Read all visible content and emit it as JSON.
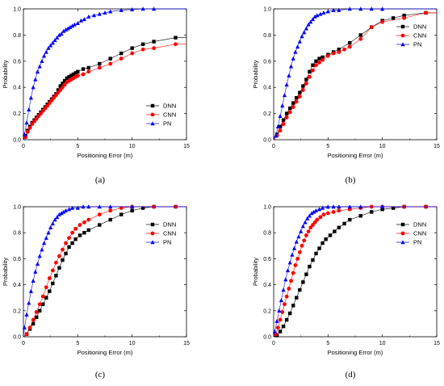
{
  "colors": {
    "DNN": "#000000",
    "CNN": "#ff0000",
    "PN": "#0000ff"
  },
  "chart_data": [
    {
      "type": "line",
      "caption": "(a)",
      "xlabel": "Positioning Error (m)",
      "ylabel": "Probability",
      "xlim": [
        0,
        15
      ],
      "ylim": [
        0,
        1.0
      ],
      "xticks": [
        "0",
        "5",
        "10",
        "15"
      ],
      "yticks": [
        "0.0",
        "0.2",
        "0.4",
        "0.6",
        "0.8",
        "1.0"
      ],
      "legend_position": "bottom-right",
      "series": [
        {
          "name": "DNN",
          "marker": "square",
          "x": [
            0.2,
            0.4,
            0.6,
            0.8,
            1.0,
            1.2,
            1.4,
            1.6,
            1.8,
            2.0,
            2.2,
            2.4,
            2.6,
            2.8,
            3.0,
            3.2,
            3.4,
            3.6,
            3.8,
            4.0,
            4.2,
            4.4,
            4.6,
            4.8,
            5.0,
            5.5,
            6.0,
            7.0,
            8.0,
            9.0,
            10.0,
            11.0,
            12.0,
            14.0
          ],
          "y": [
            0.03,
            0.07,
            0.1,
            0.13,
            0.15,
            0.17,
            0.19,
            0.21,
            0.23,
            0.25,
            0.27,
            0.29,
            0.31,
            0.33,
            0.35,
            0.38,
            0.41,
            0.43,
            0.45,
            0.47,
            0.48,
            0.49,
            0.5,
            0.51,
            0.52,
            0.54,
            0.55,
            0.58,
            0.62,
            0.66,
            0.7,
            0.73,
            0.75,
            0.78
          ]
        },
        {
          "name": "CNN",
          "marker": "circle",
          "x": [
            0.2,
            0.4,
            0.6,
            0.8,
            1.0,
            1.2,
            1.4,
            1.6,
            1.8,
            2.0,
            2.2,
            2.4,
            2.6,
            2.8,
            3.0,
            3.2,
            3.4,
            3.6,
            3.8,
            4.0,
            4.2,
            4.4,
            4.6,
            4.8,
            5.0,
            5.5,
            6.0,
            7.0,
            8.0,
            9.0,
            10.0,
            11.0,
            12.0,
            14.0
          ],
          "y": [
            0.02,
            0.06,
            0.09,
            0.12,
            0.14,
            0.16,
            0.18,
            0.2,
            0.22,
            0.24,
            0.26,
            0.28,
            0.3,
            0.32,
            0.34,
            0.36,
            0.38,
            0.4,
            0.42,
            0.44,
            0.45,
            0.46,
            0.47,
            0.48,
            0.49,
            0.5,
            0.52,
            0.55,
            0.58,
            0.62,
            0.66,
            0.69,
            0.7,
            0.73
          ]
        },
        {
          "name": "PN",
          "marker": "triangle",
          "x": [
            0.1,
            0.3,
            0.5,
            0.7,
            0.9,
            1.1,
            1.3,
            1.5,
            1.7,
            1.9,
            2.1,
            2.3,
            2.5,
            2.7,
            2.9,
            3.1,
            3.3,
            3.5,
            3.7,
            3.9,
            4.1,
            4.3,
            4.5,
            4.7,
            5.0,
            5.3,
            5.6,
            6.0,
            6.5,
            7.0,
            7.5,
            8.0,
            9.0,
            10.0,
            11.0,
            12.0
          ],
          "y": [
            0.04,
            0.13,
            0.23,
            0.32,
            0.4,
            0.46,
            0.52,
            0.56,
            0.6,
            0.64,
            0.67,
            0.7,
            0.72,
            0.74,
            0.76,
            0.78,
            0.8,
            0.81,
            0.83,
            0.84,
            0.85,
            0.86,
            0.87,
            0.88,
            0.89,
            0.91,
            0.92,
            0.94,
            0.95,
            0.96,
            0.97,
            0.98,
            0.99,
            0.995,
            1.0,
            1.0
          ]
        }
      ]
    },
    {
      "type": "line",
      "caption": "(b)",
      "xlabel": "Positioning Error (m)",
      "ylabel": "Probability",
      "xlim": [
        0,
        15
      ],
      "ylim": [
        0,
        1.0
      ],
      "xticks": [
        "0",
        "5",
        "10",
        "15"
      ],
      "yticks": [
        "0.0",
        "0.2",
        "0.4",
        "0.6",
        "0.8",
        "1.0"
      ],
      "legend_position": "top-right",
      "series": [
        {
          "name": "DNN",
          "marker": "square",
          "x": [
            0.3,
            0.6,
            0.9,
            1.2,
            1.5,
            1.8,
            2.1,
            2.4,
            2.7,
            3.0,
            3.3,
            3.6,
            3.9,
            4.2,
            4.5,
            5.0,
            5.5,
            6.0,
            7.0,
            8.0,
            9.0,
            10.0,
            11.0,
            12.0,
            14.0
          ],
          "y": [
            0.04,
            0.1,
            0.15,
            0.2,
            0.24,
            0.28,
            0.32,
            0.36,
            0.41,
            0.46,
            0.52,
            0.57,
            0.6,
            0.62,
            0.63,
            0.65,
            0.67,
            0.69,
            0.74,
            0.8,
            0.86,
            0.91,
            0.93,
            0.95,
            0.97
          ]
        },
        {
          "name": "CNN",
          "marker": "circle",
          "x": [
            0.3,
            0.6,
            0.9,
            1.2,
            1.5,
            1.8,
            2.1,
            2.4,
            2.7,
            3.0,
            3.3,
            3.6,
            3.9,
            4.2,
            4.5,
            5.0,
            5.5,
            6.0,
            6.5,
            7.0,
            8.0,
            9.0,
            10.0,
            12.0,
            14.0
          ],
          "y": [
            0.03,
            0.07,
            0.12,
            0.17,
            0.21,
            0.25,
            0.29,
            0.33,
            0.38,
            0.43,
            0.48,
            0.53,
            0.57,
            0.59,
            0.61,
            0.64,
            0.66,
            0.67,
            0.69,
            0.71,
            0.77,
            0.86,
            0.9,
            0.93,
            0.97
          ]
        },
        {
          "name": "PN",
          "marker": "triangle",
          "x": [
            0.2,
            0.4,
            0.6,
            0.8,
            1.0,
            1.2,
            1.4,
            1.6,
            1.8,
            2.0,
            2.2,
            2.4,
            2.6,
            2.8,
            3.0,
            3.2,
            3.4,
            3.6,
            3.8,
            4.0,
            4.3,
            4.6,
            5.0,
            5.5,
            6.0,
            7.0,
            8.0,
            9.0,
            10.0
          ],
          "y": [
            0.03,
            0.1,
            0.18,
            0.26,
            0.34,
            0.42,
            0.49,
            0.56,
            0.62,
            0.67,
            0.71,
            0.75,
            0.79,
            0.82,
            0.85,
            0.88,
            0.9,
            0.92,
            0.94,
            0.95,
            0.96,
            0.97,
            0.98,
            0.99,
            0.99,
            1.0,
            1.0,
            1.0,
            1.0
          ]
        }
      ]
    },
    {
      "type": "line",
      "caption": "(c)",
      "xlabel": "Positioning Error (m)",
      "ylabel": "Probability",
      "xlim": [
        0,
        15
      ],
      "ylim": [
        0,
        1.0
      ],
      "xticks": [
        "0",
        "5",
        "10",
        "15"
      ],
      "yticks": [
        "0.0",
        "0.2",
        "0.4",
        "0.6",
        "0.8",
        "1.0"
      ],
      "legend_position": "top-right",
      "series": [
        {
          "name": "DNN",
          "marker": "square",
          "x": [
            0.3,
            0.6,
            0.9,
            1.2,
            1.5,
            1.8,
            2.1,
            2.4,
            2.7,
            3.0,
            3.3,
            3.6,
            3.9,
            4.2,
            4.5,
            4.8,
            5.2,
            5.6,
            6.0,
            7.0,
            8.0,
            9.0,
            10.0,
            11.0,
            12.0,
            14.0
          ],
          "y": [
            0.02,
            0.06,
            0.1,
            0.15,
            0.2,
            0.25,
            0.3,
            0.35,
            0.41,
            0.47,
            0.53,
            0.59,
            0.64,
            0.69,
            0.72,
            0.75,
            0.78,
            0.8,
            0.82,
            0.86,
            0.9,
            0.94,
            0.97,
            0.99,
            1.0,
            1.0
          ]
        },
        {
          "name": "CNN",
          "marker": "circle",
          "x": [
            0.3,
            0.6,
            0.9,
            1.2,
            1.5,
            1.8,
            2.1,
            2.4,
            2.7,
            3.0,
            3.3,
            3.6,
            3.9,
            4.2,
            4.5,
            4.8,
            5.2,
            5.6,
            6.0,
            7.0,
            8.0,
            9.0,
            10.0,
            12.0,
            14.0
          ],
          "y": [
            0.02,
            0.07,
            0.13,
            0.19,
            0.25,
            0.31,
            0.38,
            0.45,
            0.51,
            0.57,
            0.62,
            0.67,
            0.72,
            0.76,
            0.8,
            0.83,
            0.86,
            0.88,
            0.9,
            0.94,
            0.97,
            0.99,
            1.0,
            1.0,
            1.0
          ]
        },
        {
          "name": "PN",
          "marker": "triangle",
          "x": [
            0.1,
            0.3,
            0.5,
            0.7,
            0.9,
            1.1,
            1.3,
            1.5,
            1.7,
            1.9,
            2.1,
            2.3,
            2.5,
            2.7,
            2.9,
            3.1,
            3.3,
            3.5,
            3.7,
            3.9,
            4.2,
            4.5,
            5.0,
            5.5,
            6.0,
            7.0,
            8.0,
            10.0
          ],
          "y": [
            0.07,
            0.17,
            0.26,
            0.35,
            0.43,
            0.5,
            0.56,
            0.62,
            0.67,
            0.72,
            0.76,
            0.8,
            0.84,
            0.87,
            0.9,
            0.92,
            0.94,
            0.95,
            0.96,
            0.97,
            0.98,
            0.99,
            0.99,
            1.0,
            1.0,
            1.0,
            1.0,
            1.0
          ]
        }
      ]
    },
    {
      "type": "line",
      "caption": "(d)",
      "xlabel": "Positioning Error (m)",
      "ylabel": "Probability",
      "xlim": [
        0,
        15
      ],
      "ylim": [
        0,
        1.0
      ],
      "xticks": [
        "0",
        "5",
        "10",
        "15"
      ],
      "yticks": [
        "0.0",
        "0.2",
        "0.4",
        "0.6",
        "0.8",
        "1.0"
      ],
      "legend_position": "top-right",
      "series": [
        {
          "name": "DNN",
          "marker": "square",
          "x": [
            0.3,
            0.6,
            0.9,
            1.2,
            1.5,
            1.8,
            2.1,
            2.4,
            2.7,
            3.0,
            3.3,
            3.6,
            3.9,
            4.2,
            4.5,
            4.8,
            5.2,
            5.6,
            6.0,
            6.5,
            7.0,
            8.0,
            9.0,
            10.0,
            11.0,
            12.0,
            14.0
          ],
          "y": [
            0.01,
            0.04,
            0.08,
            0.13,
            0.18,
            0.24,
            0.3,
            0.36,
            0.42,
            0.48,
            0.54,
            0.59,
            0.64,
            0.68,
            0.72,
            0.75,
            0.78,
            0.81,
            0.84,
            0.87,
            0.9,
            0.93,
            0.96,
            0.98,
            0.99,
            1.0,
            1.0
          ]
        },
        {
          "name": "CNN",
          "marker": "circle",
          "x": [
            0.2,
            0.4,
            0.6,
            0.8,
            1.0,
            1.2,
            1.4,
            1.6,
            1.8,
            2.0,
            2.2,
            2.4,
            2.6,
            2.8,
            3.0,
            3.2,
            3.4,
            3.6,
            3.8,
            4.0,
            4.3,
            4.6,
            5.0,
            5.5,
            6.0,
            7.0,
            8.0,
            9.0,
            10.0,
            12.0,
            14.0
          ],
          "y": [
            0.02,
            0.07,
            0.13,
            0.19,
            0.25,
            0.31,
            0.37,
            0.43,
            0.49,
            0.55,
            0.6,
            0.65,
            0.7,
            0.74,
            0.78,
            0.81,
            0.84,
            0.86,
            0.88,
            0.9,
            0.92,
            0.94,
            0.95,
            0.96,
            0.97,
            0.98,
            0.99,
            1.0,
            1.0,
            1.0,
            1.0
          ]
        },
        {
          "name": "PN",
          "marker": "triangle",
          "x": [
            0.1,
            0.3,
            0.5,
            0.7,
            0.9,
            1.1,
            1.3,
            1.5,
            1.7,
            1.9,
            2.1,
            2.3,
            2.5,
            2.7,
            2.9,
            3.1,
            3.3,
            3.5,
            3.7,
            3.9,
            4.2,
            4.5,
            5.0,
            5.5,
            6.0,
            7.0,
            8.0,
            10.0
          ],
          "y": [
            0.04,
            0.12,
            0.2,
            0.28,
            0.36,
            0.44,
            0.51,
            0.57,
            0.63,
            0.68,
            0.73,
            0.77,
            0.81,
            0.85,
            0.88,
            0.91,
            0.93,
            0.95,
            0.96,
            0.97,
            0.98,
            0.99,
            1.0,
            1.0,
            1.0,
            1.0,
            1.0,
            1.0
          ]
        }
      ]
    }
  ]
}
